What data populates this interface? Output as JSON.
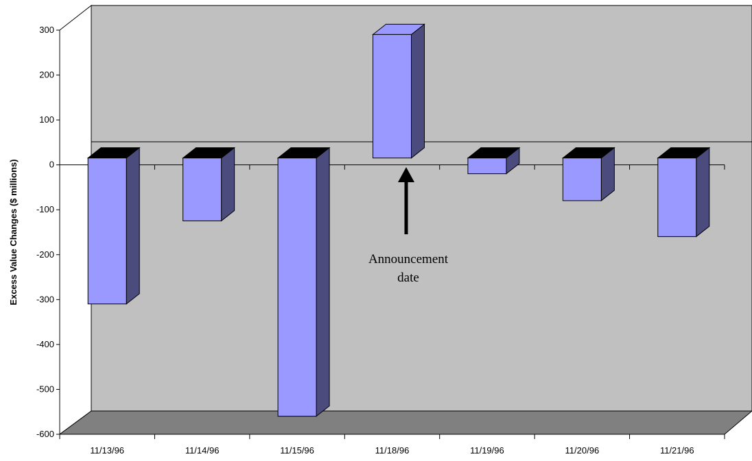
{
  "chart_data": {
    "type": "bar",
    "title": "",
    "xlabel": "",
    "ylabel": "Excess Value Changes ($ millions)",
    "categories": [
      "11/13/96",
      "11/14/96",
      "11/15/96",
      "11/18/96",
      "11/19/96",
      "11/20/96",
      "11/21/96"
    ],
    "values": [
      -325,
      -140,
      -575,
      275,
      -35,
      -95,
      -175
    ],
    "ylim": [
      -600,
      300
    ],
    "yticks": [
      "300",
      "200",
      "100",
      "0",
      "-100",
      "-200",
      "-300",
      "-400",
      "-500",
      "-600"
    ],
    "style": "3d-column",
    "grid": false,
    "legend": "none",
    "annotation": {
      "lines": [
        "Announcement",
        "date"
      ],
      "target_category": "11/18/96"
    },
    "colors": {
      "bar_front": "#9999ff",
      "bar_side": "#4b4b7d",
      "bar_top_cap": "#000000",
      "back_wall": "#c0c0c0",
      "floor": "#808080"
    }
  }
}
